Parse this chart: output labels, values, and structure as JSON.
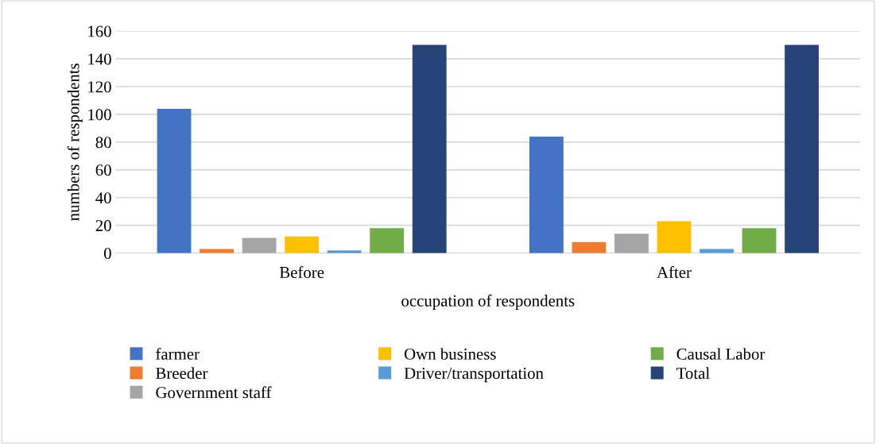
{
  "chart_data": {
    "type": "bar",
    "xlabel": "occupation of respondents",
    "ylabel": "numbers of respondents",
    "categories": [
      "Before",
      "After"
    ],
    "series": [
      {
        "name": "farmer",
        "color": "#4472c4",
        "values": [
          104,
          84
        ]
      },
      {
        "name": "Breeder",
        "color": "#ed7d31",
        "values": [
          3,
          8
        ]
      },
      {
        "name": "Government staff",
        "color": "#a5a5a5",
        "values": [
          11,
          14
        ]
      },
      {
        "name": "Own business",
        "color": "#ffc000",
        "values": [
          12,
          23
        ]
      },
      {
        "name": "Driver/transportation",
        "color": "#5b9bd5",
        "values": [
          2,
          3
        ]
      },
      {
        "name": "Causal Labor",
        "color": "#70ad47",
        "values": [
          18,
          18
        ]
      },
      {
        "name": "Total",
        "color": "#264478",
        "values": [
          150,
          150
        ]
      }
    ],
    "ylim": [
      0,
      160
    ],
    "yticks": [
      0,
      20,
      40,
      60,
      80,
      100,
      120,
      140,
      160
    ],
    "grid": "y",
    "legend": "bottom"
  }
}
